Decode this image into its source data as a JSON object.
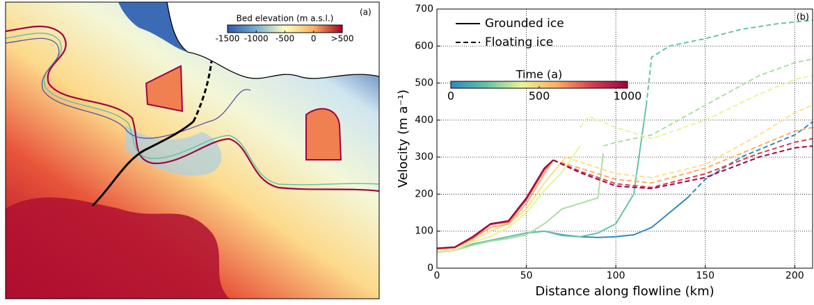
{
  "map": {
    "label": "(a)",
    "colorbar": {
      "title": "Bed elevation (m a.s.l.)",
      "lim": [
        -1500,
        500
      ],
      "ticks": [
        -1500,
        -1000,
        -500,
        0,
        {
          "value": 500,
          "label": ">500"
        }
      ],
      "colors": [
        "#2c5aa8",
        "#74add1",
        "#ffffbf",
        "#fdae61",
        "#a50026"
      ]
    }
  },
  "chart_data": {
    "type": "line",
    "label": "(b)",
    "xlabel": "Distance along flowline (km)",
    "ylabel": "Velocity (m a⁻¹)",
    "xlim": [
      0,
      210
    ],
    "xticks": [
      0,
      50,
      100,
      150,
      200
    ],
    "ylim": [
      0,
      700
    ],
    "yticks": [
      0,
      100,
      200,
      300,
      400,
      500,
      600,
      700
    ],
    "grid": true,
    "legend": [
      {
        "name": "Grounded ice",
        "dash": "solid"
      },
      {
        "name": "Floating ice",
        "dash": "dashed"
      }
    ],
    "colorbar": {
      "title": "Time (a)",
      "lim": [
        0,
        1000
      ],
      "ticks": [
        0,
        500,
        1000
      ],
      "colors": [
        "#3288bd",
        "#66c2a5",
        "#e6f598",
        "#fdae61",
        "#d53e4f",
        "#9e0142"
      ]
    },
    "series": [
      {
        "color": "#3288bd",
        "dash": "solid",
        "x": [
          0,
          10,
          20,
          30,
          40,
          50,
          60,
          70,
          80,
          90,
          100,
          110,
          120,
          130,
          140
        ],
        "values": [
          45,
          50,
          65,
          75,
          85,
          95,
          100,
          90,
          85,
          83,
          85,
          90,
          110,
          150,
          190
        ]
      },
      {
        "color": "#3288bd",
        "dash": "dashed",
        "x": [
          140,
          150,
          160,
          170,
          180,
          190,
          200,
          210
        ],
        "values": [
          190,
          240,
          270,
          300,
          320,
          340,
          360,
          395
        ]
      },
      {
        "color": "#66c2a5",
        "dash": "solid",
        "x": [
          0,
          10,
          20,
          30,
          40,
          50,
          60,
          70,
          80,
          90,
          100,
          110,
          117
        ],
        "values": [
          45,
          50,
          65,
          75,
          85,
          95,
          100,
          88,
          85,
          95,
          120,
          200,
          440
        ]
      },
      {
        "color": "#66c2a5",
        "dash": "dashed",
        "x": [
          117,
          120,
          130,
          150,
          170,
          190,
          200,
          210
        ],
        "values": [
          440,
          570,
          600,
          620,
          645,
          660,
          665,
          670
        ]
      },
      {
        "color": "#abdda4",
        "dash": "solid",
        "x": [
          0,
          10,
          20,
          30,
          40,
          50,
          60,
          70,
          80,
          90,
          93
        ],
        "values": [
          43,
          48,
          62,
          73,
          80,
          90,
          120,
          160,
          175,
          190,
          310
        ]
      },
      {
        "color": "#abdda4",
        "dash": "dashed",
        "x": [
          93,
          100,
          120,
          150,
          180,
          200,
          210
        ],
        "values": [
          330,
          340,
          360,
          440,
          520,
          555,
          565
        ]
      },
      {
        "color": "#e6f598",
        "dash": "solid",
        "x": [
          0,
          10,
          20,
          30,
          40,
          50,
          60,
          70,
          80
        ],
        "values": [
          45,
          50,
          70,
          85,
          110,
          150,
          210,
          260,
          330
        ]
      },
      {
        "color": "#e6f598",
        "dash": "dashed",
        "x": [
          80,
          85,
          100,
          120,
          150,
          180,
          200,
          210
        ],
        "values": [
          380,
          410,
          380,
          350,
          400,
          470,
          510,
          520
        ]
      },
      {
        "color": "#fee08b",
        "dash": "solid",
        "x": [
          0,
          10,
          20,
          30,
          40,
          50,
          60,
          72
        ],
        "values": [
          50,
          55,
          75,
          100,
          120,
          160,
          230,
          300
        ]
      },
      {
        "color": "#fee08b",
        "dash": "dashed",
        "x": [
          72,
          100,
          120,
          150,
          180,
          200,
          210
        ],
        "values": [
          300,
          255,
          245,
          280,
          360,
          420,
          440
        ]
      },
      {
        "color": "#fdae61",
        "dash": "solid",
        "x": [
          0,
          10,
          20,
          30,
          40,
          50,
          60,
          65
        ],
        "values": [
          52,
          55,
          80,
          110,
          120,
          175,
          255,
          292
        ]
      },
      {
        "color": "#fdae61",
        "dash": "dashed",
        "x": [
          65,
          80,
          100,
          120,
          150,
          180,
          200,
          210
        ],
        "values": [
          292,
          270,
          240,
          230,
          270,
          330,
          370,
          380
        ]
      },
      {
        "color": "#d53e4f",
        "dash": "solid",
        "x": [
          0,
          10,
          20,
          30,
          40,
          50,
          60,
          65
        ],
        "values": [
          53,
          56,
          82,
          118,
          125,
          185,
          265,
          292
        ]
      },
      {
        "color": "#d53e4f",
        "dash": "dashed",
        "x": [
          65,
          80,
          100,
          120,
          150,
          180,
          200,
          210
        ],
        "values": [
          292,
          262,
          228,
          218,
          255,
          310,
          340,
          350
        ]
      },
      {
        "color": "#9e0142",
        "dash": "solid",
        "x": [
          0,
          10,
          20,
          30,
          40,
          50,
          60,
          65
        ],
        "values": [
          54,
          57,
          85,
          120,
          128,
          190,
          270,
          292
        ]
      },
      {
        "color": "#9e0142",
        "dash": "dashed",
        "x": [
          65,
          80,
          100,
          120,
          150,
          180,
          200,
          210
        ],
        "values": [
          292,
          258,
          222,
          215,
          245,
          300,
          325,
          330
        ]
      }
    ]
  }
}
